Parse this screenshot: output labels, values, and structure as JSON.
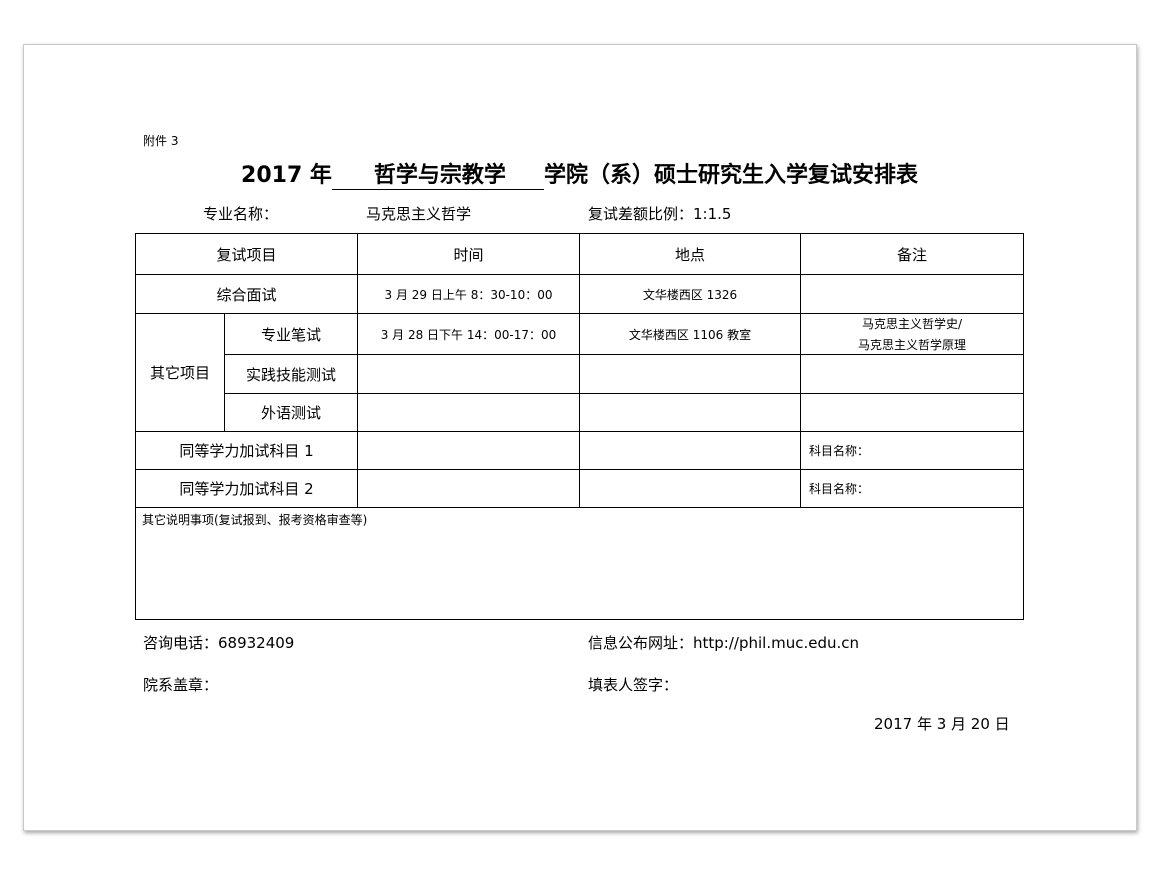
{
  "attachment_label": "附件 3",
  "title": {
    "prefix": "2017 年",
    "college": "哲学与宗教学",
    "suffix": "学院（系）硕士研究生入学复试安排表"
  },
  "meta": {
    "major_label": "专业名称：",
    "major_value": "马克思主义哲学",
    "ratio_label": "复试差额比例：",
    "ratio_value": "1:1.5"
  },
  "table": {
    "headers": [
      "复试项目",
      "时间",
      "地点",
      "备注"
    ],
    "interview": {
      "item": "综合面试",
      "time": "3 月 29 日上午 8：30-10：00",
      "place": "文华楼西区 1326",
      "note": ""
    },
    "other_group": "其它项目",
    "other_rows": [
      {
        "item": "专业笔试",
        "time": "3 月 28 日下午 14：00-17：00",
        "place": "文华楼西区 1106 教室",
        "note_line1": "马克思主义哲学史/",
        "note_line2": "马克思主义哲学原理"
      },
      {
        "item": "实践技能测试",
        "time": "",
        "place": "",
        "note_line1": "",
        "note_line2": ""
      },
      {
        "item": "外语测试",
        "time": "",
        "place": "",
        "note_line1": "",
        "note_line2": ""
      }
    ],
    "equiv_rows": [
      {
        "item": "同等学力加试科目 1",
        "time": "",
        "place": "",
        "note": "科目名称："
      },
      {
        "item": "同等学力加试科目 2",
        "time": "",
        "place": "",
        "note": "科目名称："
      }
    ],
    "other_notes_label": "其它说明事项(复试报到、报考资格审查等)"
  },
  "footer": {
    "phone": "咨询电话：68932409",
    "website": "信息公布网址：http://phil.muc.edu.cn",
    "seal": "院系盖章：",
    "signer": "填表人签字：",
    "date": "2017 年 3 月 20 日"
  }
}
